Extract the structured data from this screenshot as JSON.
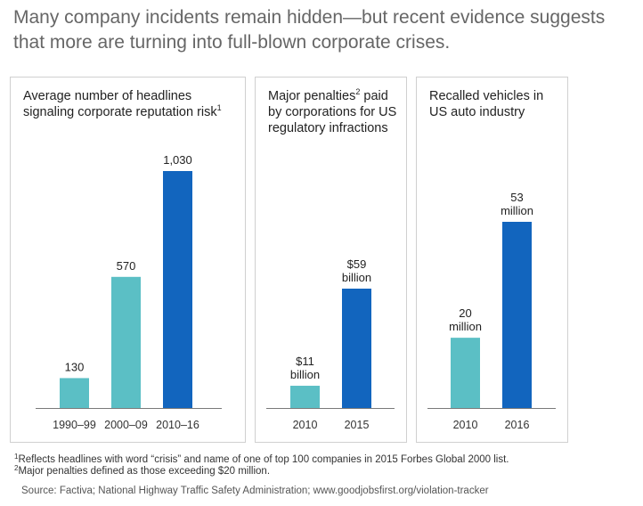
{
  "headline": "Many company incidents remain hidden—but recent evidence suggests that more are turning into full-blown corporate crises.",
  "colors": {
    "teal": "#5bbfc5",
    "blue": "#1265be",
    "axis": "#7a7a7a"
  },
  "panels": [
    {
      "title": "Average number of headlines signaling corporate reputation risk",
      "title_sup": "1"
    },
    {
      "title": "Major penalties",
      "title_sup": "2",
      "title_rest": "paid by corporations for US regulatory infractions"
    },
    {
      "title": "Recalled vehicles in US auto industry",
      "title_sup": ""
    }
  ],
  "footnotes": [
    {
      "sup": "1",
      "text": "Reflects headlines with word “crisis” and name of one of top 100 companies in 2015 Forbes Global 2000 list."
    },
    {
      "sup": "2",
      "text": "Major penalties defined as those exceeding $20 million."
    }
  ],
  "source": "Source: Factiva; National Highway Traffic Safety Administration; www.goodjobsfirst.org/violation-tracker",
  "chart_data": [
    {
      "type": "bar",
      "title": "Average number of headlines signaling corporate reputation risk",
      "categories": [
        "1990–99",
        "2000–09",
        "2010–16"
      ],
      "values": [
        130,
        570,
        1030
      ],
      "value_labels": [
        [
          "130"
        ],
        [
          "570"
        ],
        [
          "1,030"
        ]
      ],
      "bar_colors": [
        "teal",
        "teal",
        "blue"
      ],
      "ylim": [
        0,
        1030
      ],
      "grid": false
    },
    {
      "type": "bar",
      "title": "Major penalties paid by corporations for US regulatory infractions",
      "unit": "$ billion",
      "categories": [
        "2010",
        "2015"
      ],
      "values": [
        11,
        59
      ],
      "value_labels": [
        [
          "$11",
          "billion"
        ],
        [
          "$59",
          "billion"
        ]
      ],
      "bar_colors": [
        "teal",
        "blue"
      ],
      "ylim": [
        0,
        59
      ],
      "grid": false
    },
    {
      "type": "bar",
      "title": "Recalled vehicles in US auto industry",
      "unit": "million",
      "categories": [
        "2010",
        "2016"
      ],
      "values": [
        20,
        53
      ],
      "value_labels": [
        [
          "20",
          "million"
        ],
        [
          "53",
          "million"
        ]
      ],
      "bar_colors": [
        "teal",
        "blue"
      ],
      "ylim": [
        0,
        53
      ],
      "grid": false
    }
  ]
}
